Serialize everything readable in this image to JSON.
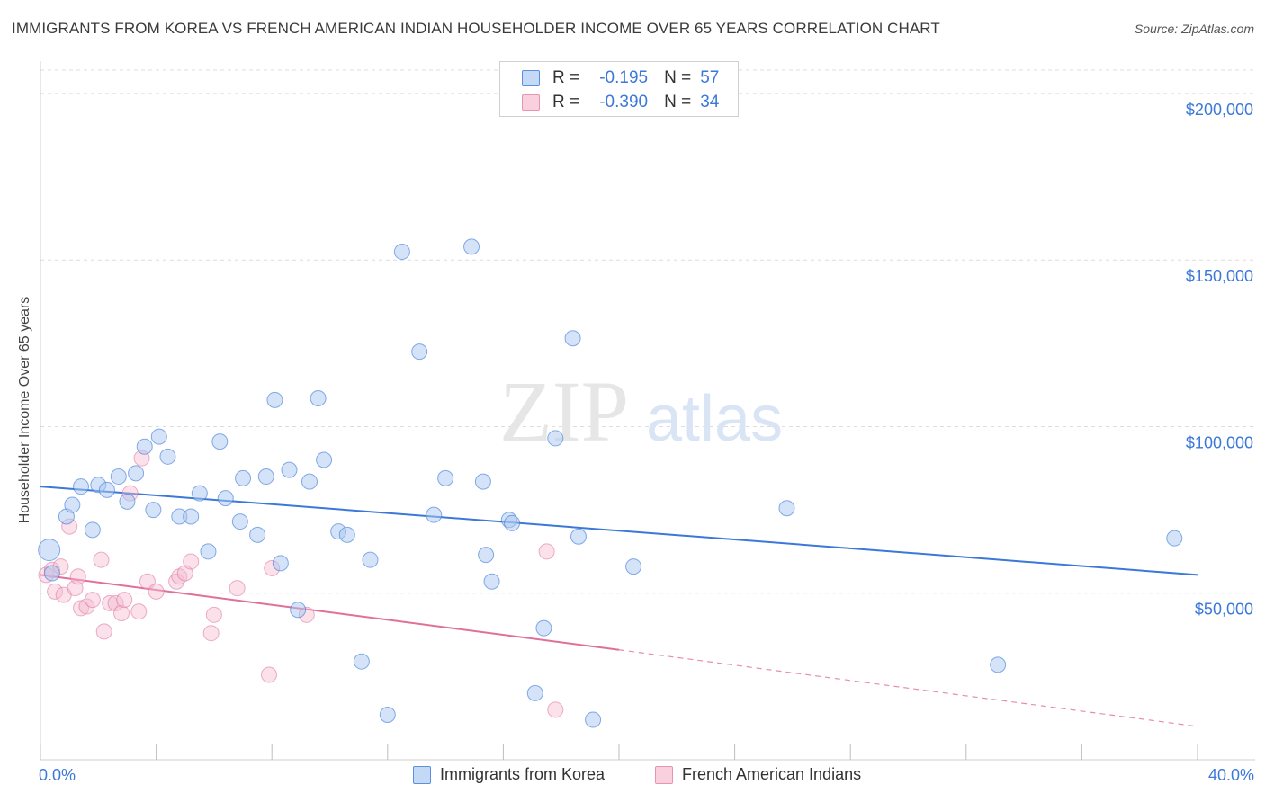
{
  "title": "IMMIGRANTS FROM KOREA VS FRENCH AMERICAN INDIAN HOUSEHOLDER INCOME OVER 65 YEARS CORRELATION CHART",
  "source": "Source: ZipAtlas.com",
  "watermark": {
    "zip": "ZIP",
    "atlas": "atlas"
  },
  "legend_top": {
    "r_label": "R =",
    "n_label": "N =",
    "rows": [
      {
        "r": "-0.195",
        "n": "57"
      },
      {
        "r": "-0.390",
        "n": "34"
      }
    ]
  },
  "chart_data": {
    "type": "scatter",
    "title": "IMMIGRANTS FROM KOREA VS FRENCH AMERICAN INDIAN HOUSEHOLDER INCOME OVER 65 YEARS CORRELATION CHART",
    "xlabel": "",
    "ylabel": "Householder Income Over 65 years",
    "xlim": [
      0,
      40
    ],
    "ylim": [
      0,
      207000
    ],
    "x_tick_labels": [
      "0.0%",
      "40.0%"
    ],
    "y_ticks": [
      50000,
      100000,
      150000,
      200000
    ],
    "y_tick_labels": [
      "$50,000",
      "$100,000",
      "$150,000",
      "$200,000"
    ],
    "grid": true,
    "legend_position": "bottom",
    "colors": {
      "korea": "#3b78d8",
      "korea_fill": "#aac8f0",
      "french": "#e0709a",
      "french_fill": "#f5bcd0",
      "tick_label": "#3b78d8"
    },
    "series": [
      {
        "name": "Immigrants from Korea",
        "r": -0.195,
        "n": 57,
        "trend": {
          "x0": 0,
          "y0": 82000,
          "x1": 40,
          "y1": 55500
        },
        "points": [
          [
            0.3,
            63000
          ],
          [
            0.4,
            56000
          ],
          [
            0.9,
            73000
          ],
          [
            1.1,
            76500
          ],
          [
            1.4,
            82000
          ],
          [
            1.8,
            69000
          ],
          [
            2.0,
            82500
          ],
          [
            2.3,
            81000
          ],
          [
            2.7,
            85000
          ],
          [
            3.0,
            77500
          ],
          [
            3.3,
            86000
          ],
          [
            3.6,
            94000
          ],
          [
            3.9,
            75000
          ],
          [
            4.1,
            97000
          ],
          [
            4.4,
            91000
          ],
          [
            4.8,
            73000
          ],
          [
            5.2,
            73000
          ],
          [
            5.5,
            80000
          ],
          [
            5.8,
            62500
          ],
          [
            6.2,
            95500
          ],
          [
            6.4,
            78500
          ],
          [
            6.9,
            71500
          ],
          [
            7.0,
            84500
          ],
          [
            7.5,
            67500
          ],
          [
            7.8,
            85000
          ],
          [
            8.1,
            108000
          ],
          [
            8.3,
            59000
          ],
          [
            8.6,
            87000
          ],
          [
            8.9,
            45000
          ],
          [
            9.3,
            83500
          ],
          [
            9.6,
            108500
          ],
          [
            9.8,
            90000
          ],
          [
            10.3,
            68500
          ],
          [
            10.6,
            67500
          ],
          [
            11.1,
            29500
          ],
          [
            11.4,
            60000
          ],
          [
            12.0,
            13500
          ],
          [
            12.5,
            152500
          ],
          [
            13.1,
            122500
          ],
          [
            13.6,
            73500
          ],
          [
            14.0,
            84500
          ],
          [
            14.9,
            154000
          ],
          [
            15.3,
            83500
          ],
          [
            15.4,
            61500
          ],
          [
            15.6,
            53500
          ],
          [
            16.2,
            72000
          ],
          [
            16.3,
            71000
          ],
          [
            17.1,
            20000
          ],
          [
            17.4,
            39500
          ],
          [
            17.8,
            96500
          ],
          [
            18.4,
            126500
          ],
          [
            18.6,
            67000
          ],
          [
            19.1,
            12000
          ],
          [
            20.5,
            58000
          ],
          [
            25.8,
            75500
          ],
          [
            33.1,
            28500
          ],
          [
            39.2,
            66500
          ]
        ]
      },
      {
        "name": "French American Indians",
        "r": -0.39,
        "n": 34,
        "trend": {
          "x0": 0,
          "y0": 55500,
          "x1": 20,
          "y1": 33000,
          "dash_to_x": 40,
          "dash_to_y": 10000
        },
        "points": [
          [
            0.2,
            55500
          ],
          [
            0.4,
            57000
          ],
          [
            0.5,
            50500
          ],
          [
            0.7,
            58000
          ],
          [
            0.8,
            49500
          ],
          [
            1.0,
            70000
          ],
          [
            1.2,
            51500
          ],
          [
            1.3,
            55000
          ],
          [
            1.4,
            45500
          ],
          [
            1.6,
            46000
          ],
          [
            1.8,
            48000
          ],
          [
            2.1,
            60000
          ],
          [
            2.2,
            38500
          ],
          [
            2.4,
            47000
          ],
          [
            2.6,
            47000
          ],
          [
            2.8,
            44000
          ],
          [
            2.9,
            48000
          ],
          [
            3.1,
            80000
          ],
          [
            3.4,
            44500
          ],
          [
            3.5,
            90500
          ],
          [
            3.7,
            53500
          ],
          [
            4.0,
            50500
          ],
          [
            4.7,
            53500
          ],
          [
            4.8,
            55000
          ],
          [
            5.0,
            56000
          ],
          [
            5.2,
            59500
          ],
          [
            5.9,
            38000
          ],
          [
            6.0,
            43500
          ],
          [
            6.8,
            51500
          ],
          [
            7.9,
            25500
          ],
          [
            8.0,
            57500
          ],
          [
            9.2,
            43500
          ],
          [
            17.5,
            62500
          ],
          [
            17.8,
            15000
          ]
        ]
      }
    ]
  },
  "legend_bottom": [
    {
      "label": "Immigrants from Korea"
    },
    {
      "label": "French American Indians"
    }
  ]
}
